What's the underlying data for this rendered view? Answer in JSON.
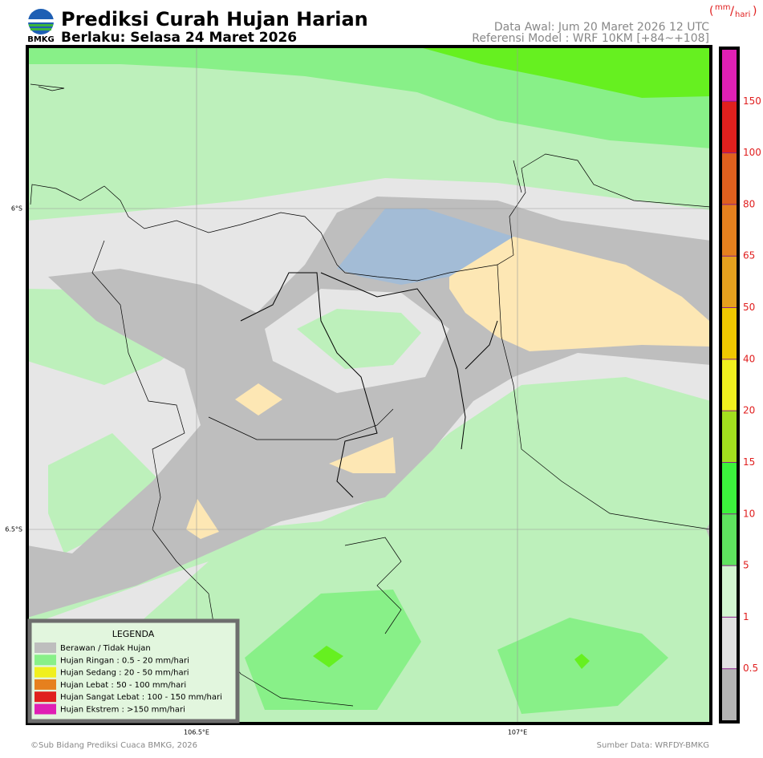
{
  "header": {
    "logo_text": "BMKG",
    "title": "Prediksi Curah Hujan Harian",
    "subtitle": "Berlaku: Selasa 24 Maret 2026",
    "data_awal": "Data Awal: Jum 20 Maret 2026 12 UTC",
    "referensi": "Referensi Model : WRF 10KM [+84~+108]"
  },
  "unit": {
    "open": "(",
    "numerator": "mm",
    "separator": "/",
    "denominator": "hari",
    "close": ")"
  },
  "map": {
    "lat_labels": [
      "6°S",
      "6.5°S"
    ],
    "lon_labels": [
      "106.5°E",
      "107°E"
    ]
  },
  "colorbar": {
    "ticks": [
      0.5,
      1,
      5,
      10,
      15,
      20,
      40,
      50,
      65,
      80,
      100,
      150
    ],
    "colors": [
      "#b4b4b4",
      "#e1e1e1",
      "#d2f5d0",
      "#5fe35f",
      "#3cf23c",
      "#a3e01e",
      "#f0f01e",
      "#f0c800",
      "#e6a01e",
      "#e6801e",
      "#e0601e",
      "#e0201e",
      "#e020b4"
    ]
  },
  "legend": {
    "title": "LEGENDA",
    "items": [
      {
        "label": "Berawan / Tidak Hujan",
        "color": "#bebebe"
      },
      {
        "label": "Hujan Ringan : 0.5 - 20 mm/hari",
        "color": "#88f088"
      },
      {
        "label": "Hujan Sedang : 20 - 50 mm/hari",
        "color": "#f0f01e"
      },
      {
        "label": "Hujan Lebat : 50 - 100 mm/hari",
        "color": "#e6801e"
      },
      {
        "label": "Hujan Sangat Lebat : 100 - 150 mm/hari",
        "color": "#e0201e"
      },
      {
        "label": "Hujan Ekstrem : >150 mm/hari",
        "color": "#e020b4"
      }
    ]
  },
  "footer": {
    "left": "©Sub Bidang Prediksi Cuaca BMKG, 2026",
    "right": "Sumber Data: WRFDY-BMKG"
  }
}
